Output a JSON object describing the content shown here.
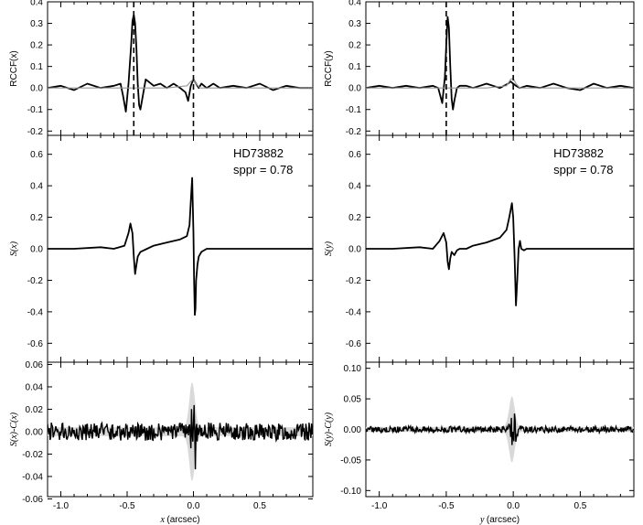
{
  "chart_data": [
    {
      "type": "line",
      "ylabel": "RCCF(x)",
      "xlim": [
        -1.1,
        0.9
      ],
      "ylim": [
        -0.22,
        0.4
      ],
      "yticks": [
        "-0.2",
        "-0.1",
        "0.0",
        "0.1",
        "0.2",
        "0.3",
        "0.4"
      ],
      "ytick_values": [
        -0.2,
        -0.1,
        0.0,
        0.1,
        0.2,
        0.3,
        0.4
      ],
      "vlines": [
        -0.45,
        0.0
      ],
      "series": [
        {
          "values_x": [
            -1.1,
            -1.0,
            -0.9,
            -0.8,
            -0.7,
            -0.6,
            -0.55,
            -0.53,
            -0.51,
            -0.49,
            -0.47,
            -0.46,
            -0.45,
            -0.44,
            -0.43,
            -0.42,
            -0.41,
            -0.4,
            -0.38,
            -0.36,
            -0.34,
            -0.3,
            -0.25,
            -0.2,
            -0.15,
            -0.1,
            -0.06,
            -0.04,
            -0.02,
            0.0,
            0.02,
            0.04,
            0.06,
            0.1,
            0.15,
            0.2,
            0.3,
            0.4,
            0.5,
            0.6,
            0.7,
            0.8,
            0.9
          ],
          "values_y": [
            0.0,
            0.01,
            -0.01,
            0.02,
            0.0,
            0.01,
            0.02,
            -0.04,
            -0.11,
            0.02,
            0.2,
            0.31,
            0.34,
            0.3,
            0.18,
            0.02,
            -0.08,
            -0.1,
            -0.03,
            0.04,
            0.03,
            0.01,
            0.02,
            0.0,
            0.02,
            0.0,
            -0.02,
            -0.06,
            0.01,
            0.04,
            0.02,
            0.0,
            0.02,
            0.0,
            0.02,
            0.0,
            0.01,
            0.0,
            0.02,
            -0.01,
            0.01,
            0.0,
            0.0
          ]
        },
        {
          "values_x": [
            -1.1,
            -0.8,
            -0.5,
            -0.2,
            -0.05,
            -0.02,
            0.0,
            0.02,
            0.05,
            0.3,
            0.6,
            0.9
          ],
          "values_y": [
            0.0,
            0.0,
            0.0,
            0.0,
            0.01,
            0.03,
            0.04,
            0.02,
            0.0,
            0.0,
            0.0,
            0.0
          ]
        }
      ]
    },
    {
      "type": "line",
      "ylabel": "S(x)",
      "xlim": [
        -1.1,
        0.9
      ],
      "ylim": [
        -0.72,
        0.72
      ],
      "yticks": [
        "-0.6",
        "-0.4",
        "-0.2",
        "0.0",
        "0.2",
        "0.4",
        "0.6"
      ],
      "ytick_values": [
        -0.6,
        -0.4,
        -0.2,
        0.0,
        0.2,
        0.4,
        0.6
      ],
      "annotation": [
        "HD73882",
        "sppr = 0.78"
      ],
      "series": [
        {
          "values_x": [
            -1.1,
            -0.9,
            -0.7,
            -0.6,
            -0.52,
            -0.49,
            -0.475,
            -0.46,
            -0.45,
            -0.44,
            -0.43,
            -0.42,
            -0.4,
            -0.35,
            -0.3,
            -0.2,
            -0.1,
            -0.05,
            -0.03,
            -0.02,
            -0.01,
            0.0,
            0.005,
            0.01,
            0.015,
            0.02,
            0.03,
            0.04,
            0.06,
            0.1,
            0.2,
            0.4,
            0.6,
            0.9
          ],
          "values_y": [
            0.0,
            0.0,
            0.01,
            0.0,
            0.02,
            0.1,
            0.16,
            0.1,
            -0.05,
            -0.16,
            -0.1,
            -0.05,
            -0.02,
            0.0,
            0.02,
            0.04,
            0.06,
            0.08,
            0.15,
            0.3,
            0.45,
            0.1,
            -0.2,
            -0.42,
            -0.38,
            -0.2,
            -0.1,
            -0.05,
            -0.02,
            0.0,
            0.0,
            0.0,
            0.0,
            0.0
          ]
        }
      ]
    },
    {
      "type": "line",
      "ylabel": "S(x)-C(x)",
      "xlabel": "x (arcsec)",
      "xlim": [
        -1.1,
        0.9
      ],
      "ylim": [
        -0.058,
        0.062
      ],
      "yticks": [
        "-0.06",
        "-0.04",
        "-0.02",
        "0.00",
        "0.02",
        "0.04",
        "0.06"
      ],
      "ytick_values": [
        -0.06,
        -0.04,
        -0.02,
        0.0,
        0.02,
        0.04,
        0.06
      ],
      "xticks": [
        "-1.0",
        "-0.5",
        "0.0",
        "0.5"
      ],
      "xtick_values": [
        -1.0,
        -0.5,
        0.0,
        0.5
      ],
      "noise_amplitude": 0.008,
      "band_amplitude": 0.04,
      "central_spike": 0.04
    },
    {
      "type": "line",
      "ylabel": "RCCF(y)",
      "xlim": [
        -1.1,
        0.9
      ],
      "ylim": [
        -0.22,
        0.4
      ],
      "yticks": [
        "-0.2",
        "-0.1",
        "0.0",
        "0.1",
        "0.2",
        "0.3",
        "0.4"
      ],
      "ytick_values": [
        -0.2,
        -0.1,
        0.0,
        0.1,
        0.2,
        0.3,
        0.4
      ],
      "vlines": [
        -0.5,
        0.0
      ],
      "series": [
        {
          "values_x": [
            -1.1,
            -1.0,
            -0.9,
            -0.8,
            -0.7,
            -0.6,
            -0.56,
            -0.53,
            -0.51,
            -0.5,
            -0.49,
            -0.48,
            -0.47,
            -0.46,
            -0.45,
            -0.44,
            -0.42,
            -0.4,
            -0.35,
            -0.3,
            -0.2,
            -0.1,
            -0.04,
            -0.02,
            0.0,
            0.02,
            0.05,
            0.1,
            0.2,
            0.3,
            0.4,
            0.5,
            0.6,
            0.7,
            0.8,
            0.9
          ],
          "values_y": [
            0.0,
            0.01,
            0.0,
            0.01,
            0.0,
            0.01,
            0.0,
            -0.07,
            0.05,
            0.2,
            0.33,
            0.28,
            0.1,
            -0.05,
            -0.1,
            -0.06,
            0.0,
            0.01,
            0.01,
            0.0,
            0.02,
            0.0,
            0.02,
            0.03,
            0.02,
            0.01,
            0.0,
            0.01,
            0.0,
            0.02,
            0.0,
            -0.01,
            0.02,
            0.0,
            0.01,
            0.0
          ]
        },
        {
          "values_x": [
            -1.1,
            -0.8,
            -0.5,
            -0.2,
            -0.05,
            -0.02,
            0.0,
            0.02,
            0.05,
            0.3,
            0.6,
            0.9
          ],
          "values_y": [
            0.0,
            0.0,
            0.0,
            0.0,
            0.01,
            0.04,
            0.045,
            0.02,
            0.0,
            0.0,
            0.0,
            0.0
          ]
        }
      ]
    },
    {
      "type": "line",
      "ylabel": "S(y)",
      "xlim": [
        -1.1,
        0.9
      ],
      "ylim": [
        -0.72,
        0.72
      ],
      "yticks": [
        "-0.6",
        "-0.4",
        "-0.2",
        "0.0",
        "0.2",
        "0.4",
        "0.6"
      ],
      "ytick_values": [
        -0.6,
        -0.4,
        -0.2,
        0.0,
        0.2,
        0.4,
        0.6
      ],
      "annotation": [
        "HD73882",
        "sppr = 0.78"
      ],
      "series": [
        {
          "values_x": [
            -1.1,
            -0.9,
            -0.7,
            -0.6,
            -0.55,
            -0.52,
            -0.5,
            -0.49,
            -0.48,
            -0.47,
            -0.46,
            -0.44,
            -0.42,
            -0.4,
            -0.35,
            -0.3,
            -0.2,
            -0.1,
            -0.05,
            -0.03,
            -0.01,
            0.0,
            0.01,
            0.02,
            0.03,
            0.04,
            0.05,
            0.06,
            0.08,
            0.1,
            0.2,
            0.4,
            0.6,
            0.9
          ],
          "values_y": [
            0.0,
            0.0,
            0.01,
            0.0,
            0.05,
            0.1,
            0.04,
            -0.08,
            -0.13,
            -0.06,
            -0.02,
            -0.04,
            -0.01,
            0.0,
            0.0,
            0.02,
            0.04,
            0.07,
            0.12,
            0.2,
            0.29,
            0.2,
            -0.05,
            -0.36,
            -0.2,
            0.0,
            0.05,
            0.0,
            -0.01,
            0.0,
            0.0,
            0.0,
            0.0,
            0.0
          ]
        }
      ]
    },
    {
      "type": "line",
      "ylabel": "S(y)-C(y)",
      "xlabel": "y (arcsec)",
      "xlim": [
        -1.1,
        0.9
      ],
      "ylim": [
        -0.11,
        0.11
      ],
      "yticks": [
        "-0.10",
        "-0.05",
        "0.00",
        "0.05",
        "0.10"
      ],
      "ytick_values": [
        -0.1,
        -0.05,
        0.0,
        0.05,
        0.1
      ],
      "xticks": [
        "-1.0",
        "-0.5",
        "0.0",
        "0.5"
      ],
      "xtick_values": [
        -1.0,
        -0.5,
        0.0,
        0.5
      ],
      "noise_amplitude": 0.005,
      "band_amplitude": 0.05,
      "central_spike": 0.03
    }
  ]
}
